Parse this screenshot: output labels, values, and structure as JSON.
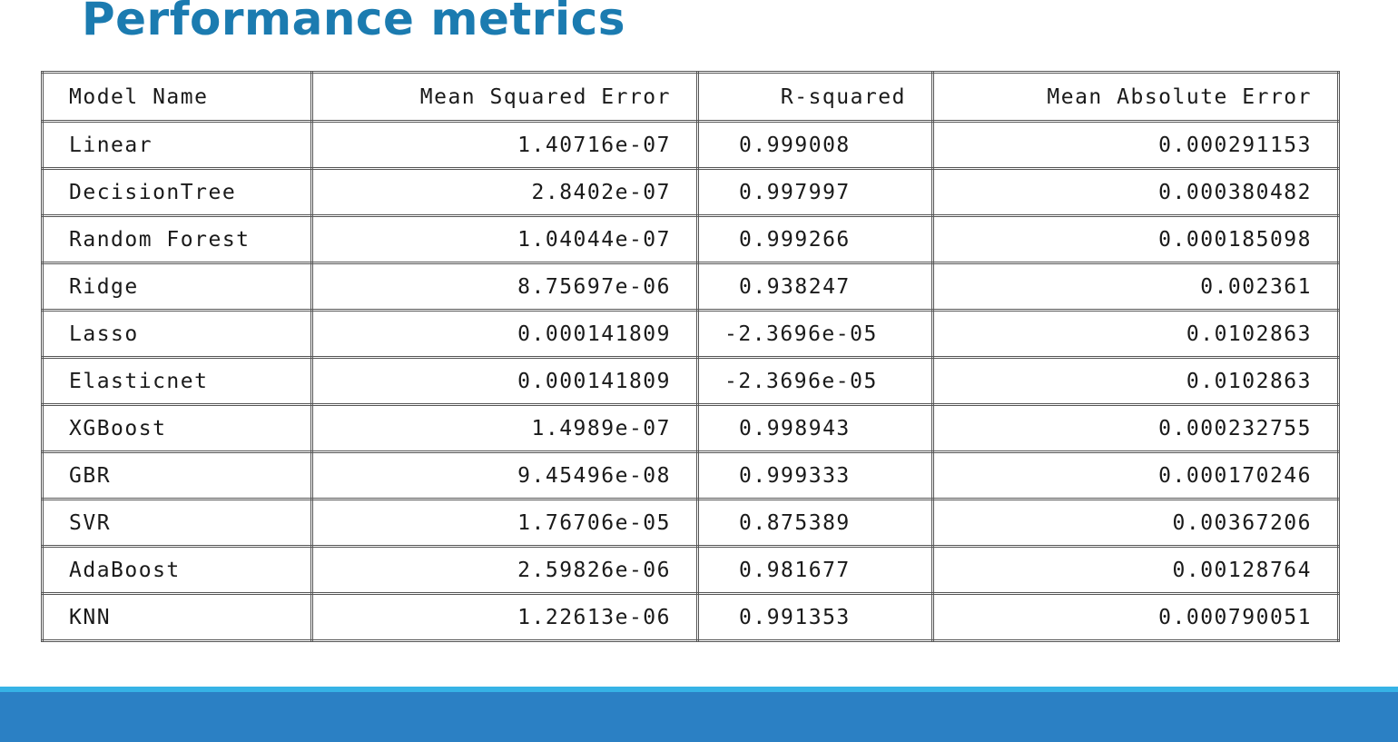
{
  "title": "Performance metrics",
  "table": {
    "headers": [
      "Model Name",
      "Mean Squared Error",
      "R-squared",
      "Mean Absolute Error"
    ],
    "rows": [
      {
        "model": "Linear",
        "mse": "1.40716e-07",
        "r2": "0.999008",
        "mae": "0.000291153"
      },
      {
        "model": "DecisionTree",
        "mse": "2.8402e-07",
        "r2": "0.997997",
        "mae": "0.000380482"
      },
      {
        "model": "Random Forest",
        "mse": "1.04044e-07",
        "r2": "0.999266",
        "mae": "0.000185098"
      },
      {
        "model": "Ridge",
        "mse": "8.75697e-06",
        "r2": "0.938247",
        "mae": "0.002361"
      },
      {
        "model": "Lasso",
        "mse": "0.000141809",
        "r2": "-2.3696e-05",
        "mae": "0.0102863"
      },
      {
        "model": "Elasticnet",
        "mse": "0.000141809",
        "r2": "-2.3696e-05",
        "mae": "0.0102863"
      },
      {
        "model": "XGBoost",
        "mse": "1.4989e-07",
        "r2": "0.998943",
        "mae": "0.000232755"
      },
      {
        "model": "GBR",
        "mse": "9.45496e-08",
        "r2": "0.999333",
        "mae": "0.000170246"
      },
      {
        "model": "SVR",
        "mse": "1.76706e-05",
        "r2": "0.875389",
        "mae": "0.00367206"
      },
      {
        "model": "AdaBoost",
        "mse": "2.59826e-06",
        "r2": "0.981677",
        "mae": "0.00128764"
      },
      {
        "model": "KNN",
        "mse": "1.22613e-06",
        "r2": "0.991353",
        "mae": "0.000790051"
      }
    ]
  },
  "colors": {
    "title": "#1b7bb0",
    "footer": "#2b80c4",
    "footer_accent": "#36b3e6"
  }
}
